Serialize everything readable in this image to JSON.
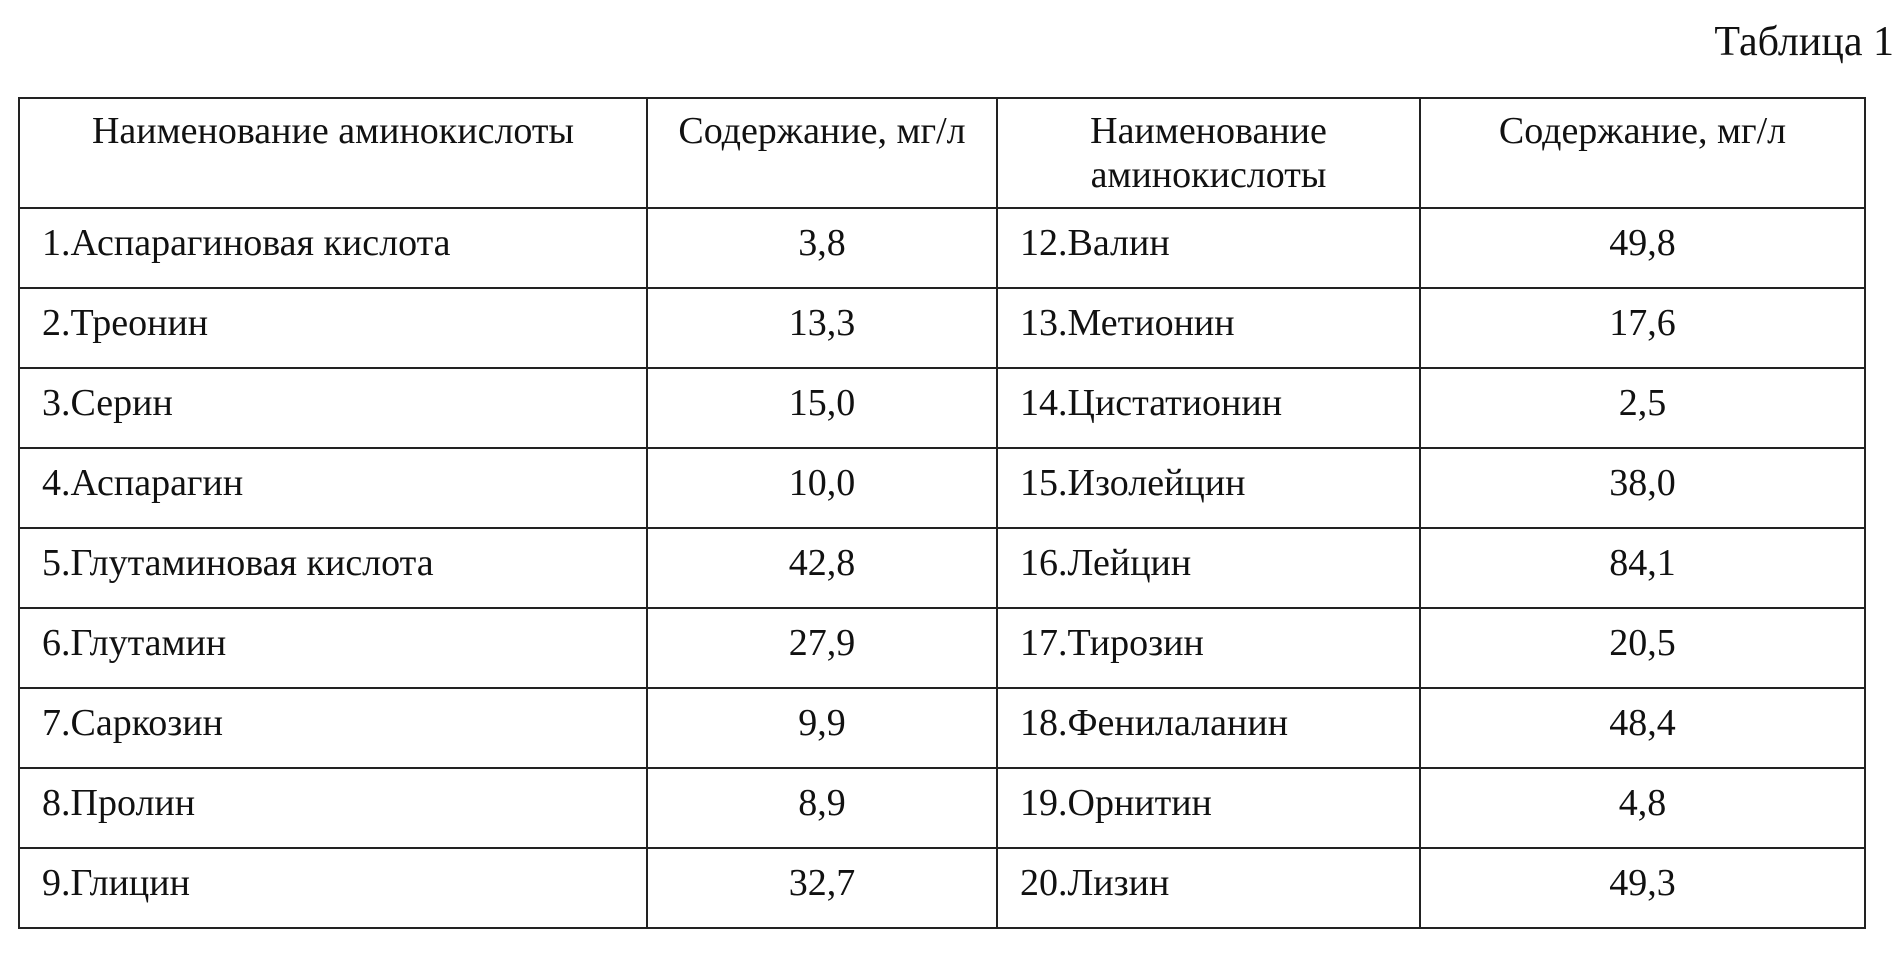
{
  "caption": "Таблица 1",
  "headers": [
    "Наименование аминокислоты",
    "Содержание, мг/л",
    "Наименование аминокислоты",
    "Содержание, мг/л"
  ],
  "rows": [
    [
      "1.Аспарагиновая кислота",
      "3,8",
      "12.Валин",
      "49,8"
    ],
    [
      "2.Треонин",
      "13,3",
      "13.Метионин",
      "17,6"
    ],
    [
      "3.Серин",
      "15,0",
      "14.Цистатионин",
      "2,5"
    ],
    [
      "4.Аспарагин",
      "10,0",
      "15.Изолейцин",
      "38,0"
    ],
    [
      "5.Глутаминовая кислота",
      "42,8",
      "16.Лейцин",
      "84,1"
    ],
    [
      "6.Глутамин",
      "27,9",
      "17.Тирозин",
      "20,5"
    ],
    [
      "7.Саркозин",
      "9,9",
      "18.Фенилаланин",
      "48,4"
    ],
    [
      "8.Пролин",
      "8,9",
      "19.Орнитин",
      "4,8"
    ],
    [
      "9.Глицин",
      "32,7",
      "20.Лизин",
      "49,3"
    ]
  ]
}
